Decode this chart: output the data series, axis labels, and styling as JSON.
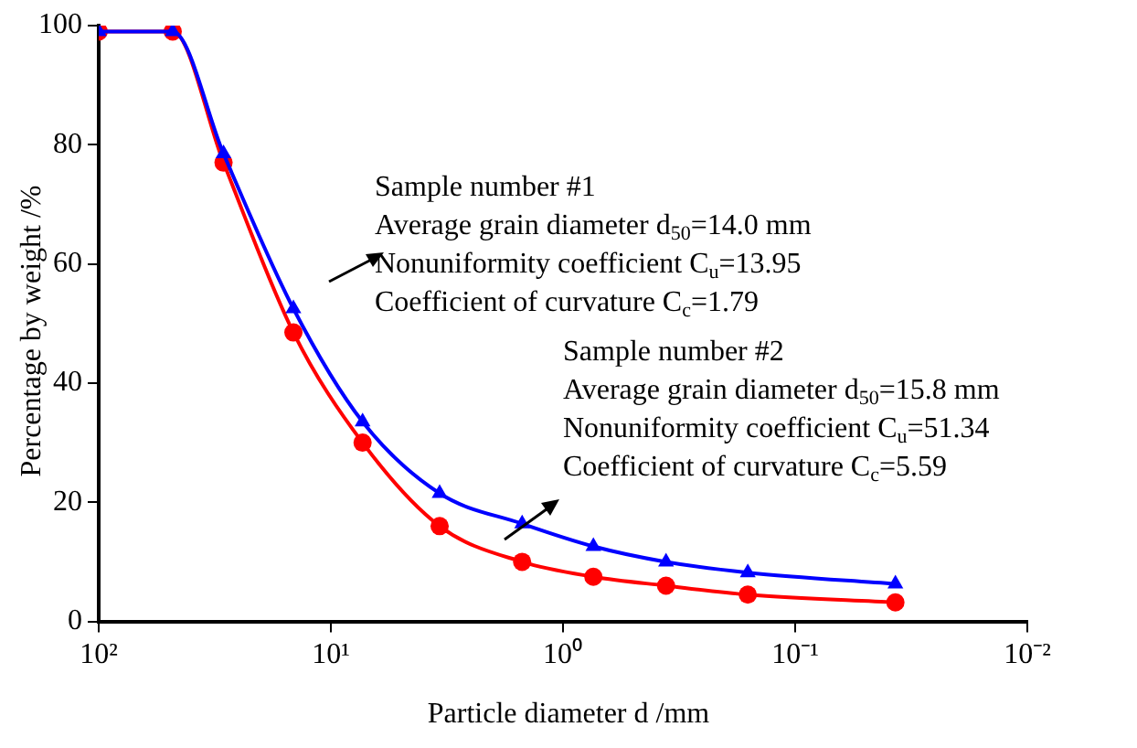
{
  "chart_data": {
    "type": "line",
    "xlabel": "Particle diameter d /mm",
    "ylabel": "Percentage by weight /%",
    "x": [
      100,
      48,
      29,
      14.5,
      7.3,
      3.4,
      1.5,
      0.74,
      0.36,
      0.16,
      0.037
    ],
    "series": [
      {
        "color": "#0000ff",
        "marker": "triangle",
        "values": [
          99,
          99,
          78.5,
          52.5,
          33.5,
          21.5,
          16.4,
          12.6,
          10,
          8.2,
          6.3
        ]
      },
      {
        "color": "#ff0000",
        "marker": "circle",
        "values": [
          99,
          99,
          77,
          48.5,
          30,
          16,
          10,
          7.5,
          6,
          4.5,
          3.2
        ]
      }
    ],
    "log": "x",
    "xlim": [
      100,
      0.01
    ],
    "xticks": [
      {
        "value": 100,
        "label": "10²"
      },
      {
        "value": 10,
        "label": "10¹"
      },
      {
        "value": 1,
        "label": "10⁰"
      },
      {
        "value": 0.1,
        "label": "10⁻¹"
      },
      {
        "value": 0.01,
        "label": "10⁻²"
      }
    ],
    "ylim": [
      0,
      100
    ],
    "yticks": [
      0,
      20,
      40,
      60,
      80,
      100
    ],
    "annotations": [
      "Sample number #1\nAverage grain diameter d$_{50}$=14.0 mm\nNonuniformity coefficient C$_{u}$=13.95\nCoefficient of curvature C$_{c}$=1.79",
      "Sample number #2\nAverage grain diameter d$_{50}$=15.8 mm\nNonuniformity coefficient C$_{u}$=51.34\nCoefficient of curvature C$_{c}$=5.59"
    ]
  }
}
